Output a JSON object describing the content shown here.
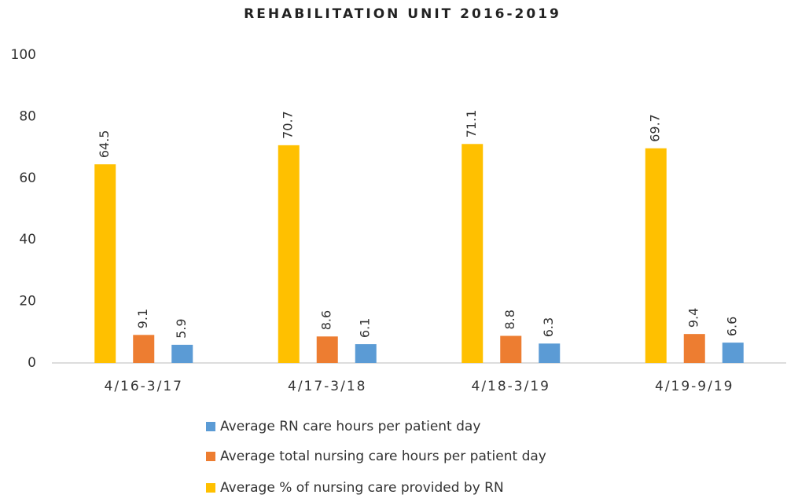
{
  "chart_data": {
    "type": "bar",
    "title": "REHABILITATION UNIT 2016-2019",
    "categories": [
      "4/16-3/17",
      "4/17-3/18",
      "4/18-3/19",
      "4/19-9/19"
    ],
    "series": [
      {
        "name": "Average RN care hours per patient day",
        "color": "#5b9bd5",
        "values": [
          5.9,
          6.1,
          6.3,
          6.6
        ]
      },
      {
        "name": "Average total nursing care hours per patient day",
        "color": "#ed7d31",
        "values": [
          9.1,
          8.6,
          8.8,
          9.4
        ]
      },
      {
        "name": "Average % of nursing care provided by RN",
        "color": "#ffc000",
        "values": [
          64.5,
          70.7,
          71.1,
          69.7
        ]
      }
    ],
    "ylim": [
      0,
      100
    ],
    "yticks": [
      0,
      20,
      40,
      60,
      80,
      100
    ],
    "grid": false
  }
}
